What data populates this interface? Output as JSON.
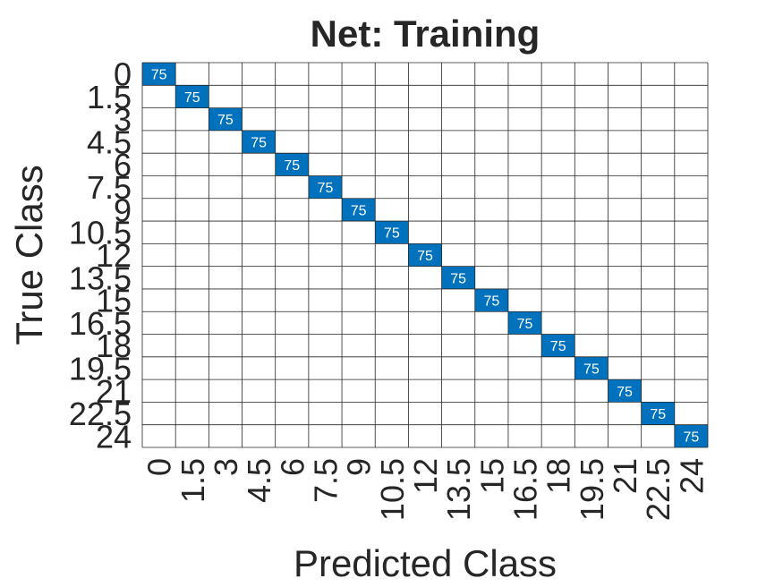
{
  "chart_data": {
    "type": "heatmap",
    "title": "Net: Training",
    "xlabel": "Predicted Class",
    "ylabel": "True Class",
    "classes": [
      "0",
      "1.5",
      "3",
      "4.5",
      "6",
      "7.5",
      "9",
      "10.5",
      "12",
      "13.5",
      "15",
      "16.5",
      "18",
      "19.5",
      "21",
      "22.5",
      "24"
    ],
    "diagonal_values": [
      75,
      75,
      75,
      75,
      75,
      75,
      75,
      75,
      75,
      75,
      75,
      75,
      75,
      75,
      75,
      75,
      75
    ],
    "off_diagonal_value": 0,
    "cell_color": "#0072BD",
    "grid": true
  }
}
